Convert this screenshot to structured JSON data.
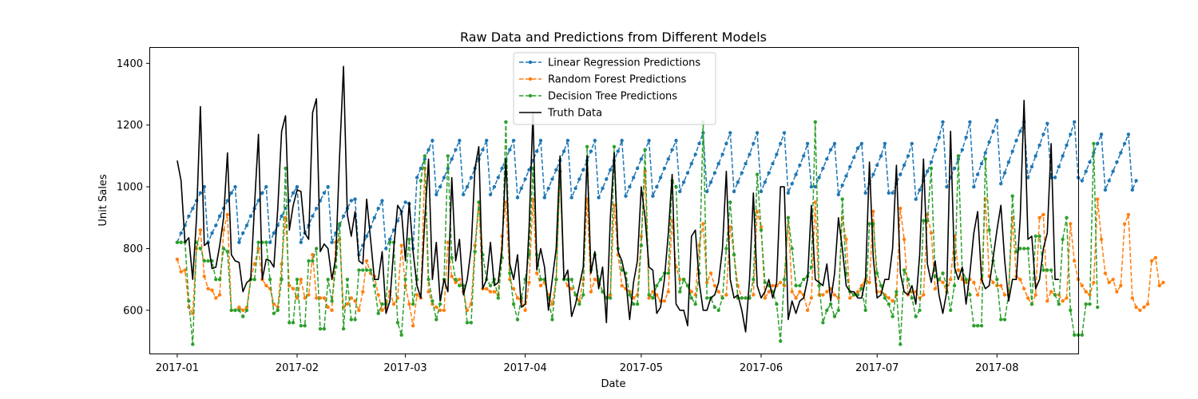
{
  "chart_data": {
    "type": "line",
    "title": "Raw Data and Predictions from Different Models",
    "xlabel": "Date",
    "ylabel": "Unit Sales",
    "x_start": "2017-01-01",
    "x_end": "2017-08-15",
    "xlim": [
      "2016-12-25",
      "2017-08-22"
    ],
    "ylim": [
      460,
      1450
    ],
    "x_ticks": [
      {
        "date": "2017-01-01",
        "label": "2017-01"
      },
      {
        "date": "2017-02-01",
        "label": "2017-02"
      },
      {
        "date": "2017-03-01",
        "label": "2017-03"
      },
      {
        "date": "2017-04-01",
        "label": "2017-04"
      },
      {
        "date": "2017-05-01",
        "label": "2017-05"
      },
      {
        "date": "2017-06-01",
        "label": "2017-06"
      },
      {
        "date": "2017-07-01",
        "label": "2017-07"
      },
      {
        "date": "2017-08-01",
        "label": "2017-08"
      }
    ],
    "y_ticks": [
      600,
      800,
      1000,
      1200,
      1400
    ],
    "grid": false,
    "legend_position": "top-center",
    "series": [
      {
        "name": "Linear Regression Predictions",
        "color": "#1f77b4",
        "style": "dashed-markers",
        "values": [
          820,
          850,
          875,
          905,
          930,
          955,
          980,
          1000,
          820,
          850,
          875,
          905,
          930,
          955,
          980,
          1000,
          820,
          850,
          875,
          905,
          930,
          955,
          980,
          1000,
          820,
          850,
          875,
          905,
          930,
          955,
          980,
          1000,
          820,
          850,
          875,
          905,
          930,
          955,
          980,
          1000,
          820,
          850,
          875,
          905,
          930,
          955,
          960,
          780,
          810,
          840,
          870,
          900,
          930,
          955,
          800,
          830,
          860,
          890,
          920,
          950,
          945,
          800,
          1030,
          1060,
          1090,
          1120,
          1150,
          975,
          1000,
          1030,
          1060,
          1090,
          1120,
          1150,
          975,
          1000,
          1030,
          1060,
          1090,
          1120,
          1150,
          975,
          1000,
          1030,
          1060,
          1090,
          1120,
          1150,
          965,
          995,
          1025,
          1055,
          1085,
          1115,
          1150,
          965,
          995,
          1025,
          1055,
          1085,
          1115,
          1150,
          965,
          995,
          1025,
          1055,
          1085,
          1115,
          1150,
          965,
          995,
          1025,
          1055,
          1085,
          1115,
          1150,
          970,
          1000,
          1030,
          1060,
          1090,
          1120,
          1150,
          970,
          1000,
          1030,
          1060,
          1090,
          1120,
          1150,
          985,
          1015,
          1045,
          1075,
          1105,
          1140,
          1175,
          985,
          1015,
          1045,
          1075,
          1105,
          1140,
          1175,
          985,
          1015,
          1045,
          1075,
          1105,
          1140,
          1175,
          985,
          1015,
          1045,
          1075,
          1105,
          1140,
          1175,
          980,
          1010,
          1040,
          1070,
          1100,
          1140,
          1000,
          1000,
          1030,
          1060,
          1090,
          1120,
          1140,
          975,
          1005,
          1035,
          1065,
          1095,
          1125,
          1140,
          980,
          1010,
          1040,
          1070,
          1100,
          1140,
          980,
          980,
          1010,
          1040,
          1070,
          1100,
          1140,
          960,
          990,
          1020,
          1050,
          1080,
          1120,
          1160,
          1210,
          1000,
          1030,
          1060,
          1090,
          1120,
          1160,
          1210,
          1000,
          1040,
          1075,
          1110,
          1145,
          1180,
          1215,
          1010,
          1045,
          1080,
          1115,
          1150,
          1180,
          1210,
          1030,
          1065,
          1100,
          1135,
          1170,
          1205,
          1030,
          1030,
          1065,
          1100,
          1135,
          1170,
          1210,
          1030,
          1020,
          1050,
          1080,
          1110,
          1140,
          1170,
          990,
          1020,
          1050,
          1080,
          1110,
          1140,
          1170,
          990,
          1020
        ]
      },
      {
        "name": "Random Forest Predictions",
        "color": "#ff7f0e",
        "style": "dashed-markers",
        "values": [
          765,
          725,
          730,
          610,
          590,
          800,
          860,
          710,
          670,
          665,
          640,
          650,
          860,
          910,
          600,
          600,
          610,
          600,
          610,
          700,
          750,
          800,
          700,
          680,
          670,
          620,
          610,
          750,
          900,
          680,
          670,
          640,
          700,
          640,
          650,
          780,
          640,
          640,
          640,
          610,
          600,
          820,
          830,
          610,
          620,
          640,
          630,
          600,
          660,
          760,
          720,
          710,
          650,
          600,
          610,
          660,
          620,
          640,
          810,
          680,
          620,
          550,
          650,
          640,
          1060,
          660,
          620,
          610,
          600,
          600,
          820,
          710,
          690,
          700,
          660,
          600,
          620,
          810,
          950,
          670,
          670,
          660,
          660,
          650,
          840,
          950,
          700,
          670,
          640,
          630,
          600,
          690,
          960,
          720,
          680,
          690,
          650,
          620,
          700,
          1050,
          700,
          680,
          670,
          650,
          630,
          700,
          960,
          660,
          700,
          690,
          660,
          640,
          650,
          940,
          780,
          680,
          670,
          660,
          640,
          650,
          840,
          1050,
          640,
          660,
          650,
          630,
          630,
          660,
          890,
          740,
          700,
          700,
          680,
          660,
          650,
          810,
          880,
          690,
          720,
          680,
          660,
          640,
          650,
          870,
          780,
          680,
          640,
          640,
          640,
          650,
          920,
          870,
          640,
          660,
          680,
          680,
          690,
          680,
          900,
          660,
          640,
          660,
          650,
          600,
          640,
          950,
          650,
          650,
          660,
          670,
          650,
          640,
          900,
          830,
          640,
          650,
          660,
          680,
          700,
          690,
          920,
          660,
          660,
          650,
          640,
          630,
          650,
          930,
          830,
          650,
          660,
          660,
          640,
          650,
          910,
          850,
          670,
          700,
          690,
          660,
          700,
          840,
          730,
          700,
          690,
          700,
          690,
          650,
          700,
          960,
          710,
          690,
          680,
          680,
          650,
          660,
          900,
          710,
          700,
          670,
          640,
          620,
          650,
          900,
          910,
          630,
          660,
          650,
          650,
          630,
          640,
          880,
          760,
          700,
          680,
          660,
          650,
          690,
          960,
          830,
          720,
          690,
          700,
          660,
          680,
          880,
          910,
          640,
          610,
          600,
          610,
          620,
          760,
          770,
          680,
          690
        ]
      },
      {
        "name": "Decision Tree Predictions",
        "color": "#2ca02c",
        "style": "dashed-markers",
        "values": [
          820,
          820,
          820,
          630,
          490,
          820,
          800,
          760,
          760,
          760,
          700,
          700,
          800,
          790,
          600,
          600,
          600,
          580,
          600,
          700,
          700,
          820,
          820,
          820,
          700,
          590,
          600,
          700,
          1060,
          560,
          560,
          700,
          550,
          550,
          760,
          760,
          800,
          540,
          540,
          700,
          630,
          740,
          880,
          540,
          700,
          570,
          570,
          730,
          730,
          730,
          730,
          680,
          590,
          620,
          620,
          820,
          820,
          560,
          520,
          700,
          830,
          620,
          700,
          1020,
          1100,
          700,
          630,
          570,
          620,
          700,
          1100,
          770,
          700,
          680,
          680,
          560,
          560,
          790,
          950,
          780,
          700,
          680,
          700,
          640,
          770,
          1210,
          720,
          620,
          570,
          640,
          700,
          780,
          1060,
          780,
          700,
          700,
          640,
          570,
          700,
          1050,
          700,
          700,
          700,
          650,
          620,
          650,
          1130,
          730,
          780,
          700,
          660,
          640,
          640,
          1130,
          800,
          730,
          720,
          650,
          620,
          620,
          810,
          1120,
          650,
          640,
          680,
          700,
          720,
          720,
          1020,
          1000,
          660,
          700,
          680,
          640,
          620,
          720,
          1210,
          640,
          640,
          610,
          600,
          640,
          800,
          950,
          780,
          640,
          640,
          640,
          640,
          700,
          1040,
          860,
          690,
          680,
          660,
          620,
          500,
          700,
          900,
          800,
          680,
          680,
          700,
          710,
          740,
          1210,
          680,
          560,
          600,
          620,
          580,
          600,
          960,
          720,
          660,
          650,
          650,
          670,
          600,
          880,
          880,
          720,
          680,
          640,
          620,
          580,
          660,
          490,
          730,
          700,
          640,
          580,
          600,
          890,
          890,
          1060,
          710,
          700,
          720,
          680,
          600,
          680,
          1100,
          730,
          700,
          650,
          550,
          550,
          550,
          1090,
          860,
          760,
          700,
          570,
          570,
          650,
          970,
          790,
          800,
          800,
          800,
          620,
          840,
          840,
          730,
          730,
          730,
          650,
          620,
          830,
          900,
          600,
          520,
          520,
          520,
          620,
          620,
          1140,
          610
        ]
      },
      {
        "name": "Truth Data",
        "color": "#000000",
        "style": "solid",
        "values": [
          1085,
          1020,
          820,
          835,
          700,
          900,
          1260,
          810,
          820,
          735,
          740,
          810,
          900,
          1110,
          780,
          760,
          755,
          660,
          690,
          700,
          940,
          1170,
          700,
          765,
          760,
          740,
          930,
          1180,
          1230,
          860,
          940,
          990,
          985,
          850,
          830,
          1240,
          1285,
          790,
          815,
          800,
          700,
          770,
          1100,
          1390,
          910,
          840,
          920,
          760,
          750,
          960,
          830,
          700,
          700,
          790,
          590,
          630,
          800,
          940,
          920,
          760,
          950,
          790,
          680,
          640,
          890,
          1090,
          700,
          820,
          630,
          700,
          660,
          1030,
          760,
          830,
          650,
          700,
          800,
          1060,
          1130,
          670,
          700,
          820,
          680,
          690,
          800,
          1090,
          750,
          700,
          780,
          610,
          620,
          870,
          1240,
          730,
          800,
          740,
          600,
          700,
          800,
          1100,
          700,
          730,
          580,
          620,
          680,
          740,
          1100,
          720,
          790,
          670,
          740,
          560,
          900,
          1110,
          790,
          760,
          700,
          570,
          690,
          760,
          1000,
          900,
          740,
          730,
          590,
          610,
          700,
          850,
          1040,
          620,
          600,
          600,
          550,
          840,
          860,
          690,
          600,
          600,
          640,
          650,
          690,
          800,
          1050,
          700,
          640,
          650,
          600,
          530,
          700,
          980,
          680,
          640,
          660,
          700,
          640,
          690,
          1000,
          1000,
          570,
          630,
          590,
          630,
          640,
          700,
          940,
          700,
          690,
          680,
          750,
          630,
          720,
          900,
          800,
          680,
          660,
          660,
          640,
          640,
          700,
          1080,
          770,
          640,
          650,
          700,
          700,
          800,
          1070,
          720,
          660,
          650,
          680,
          620,
          780,
          1090,
          750,
          690,
          760,
          650,
          590,
          660,
          1180,
          740,
          700,
          740,
          620,
          720,
          850,
          920,
          700,
          670,
          680,
          770,
          860,
          940,
          760,
          630,
          700,
          700,
          900,
          1280,
          830,
          840,
          670,
          700,
          800,
          850,
          1140,
          700,
          700
        ]
      }
    ]
  }
}
